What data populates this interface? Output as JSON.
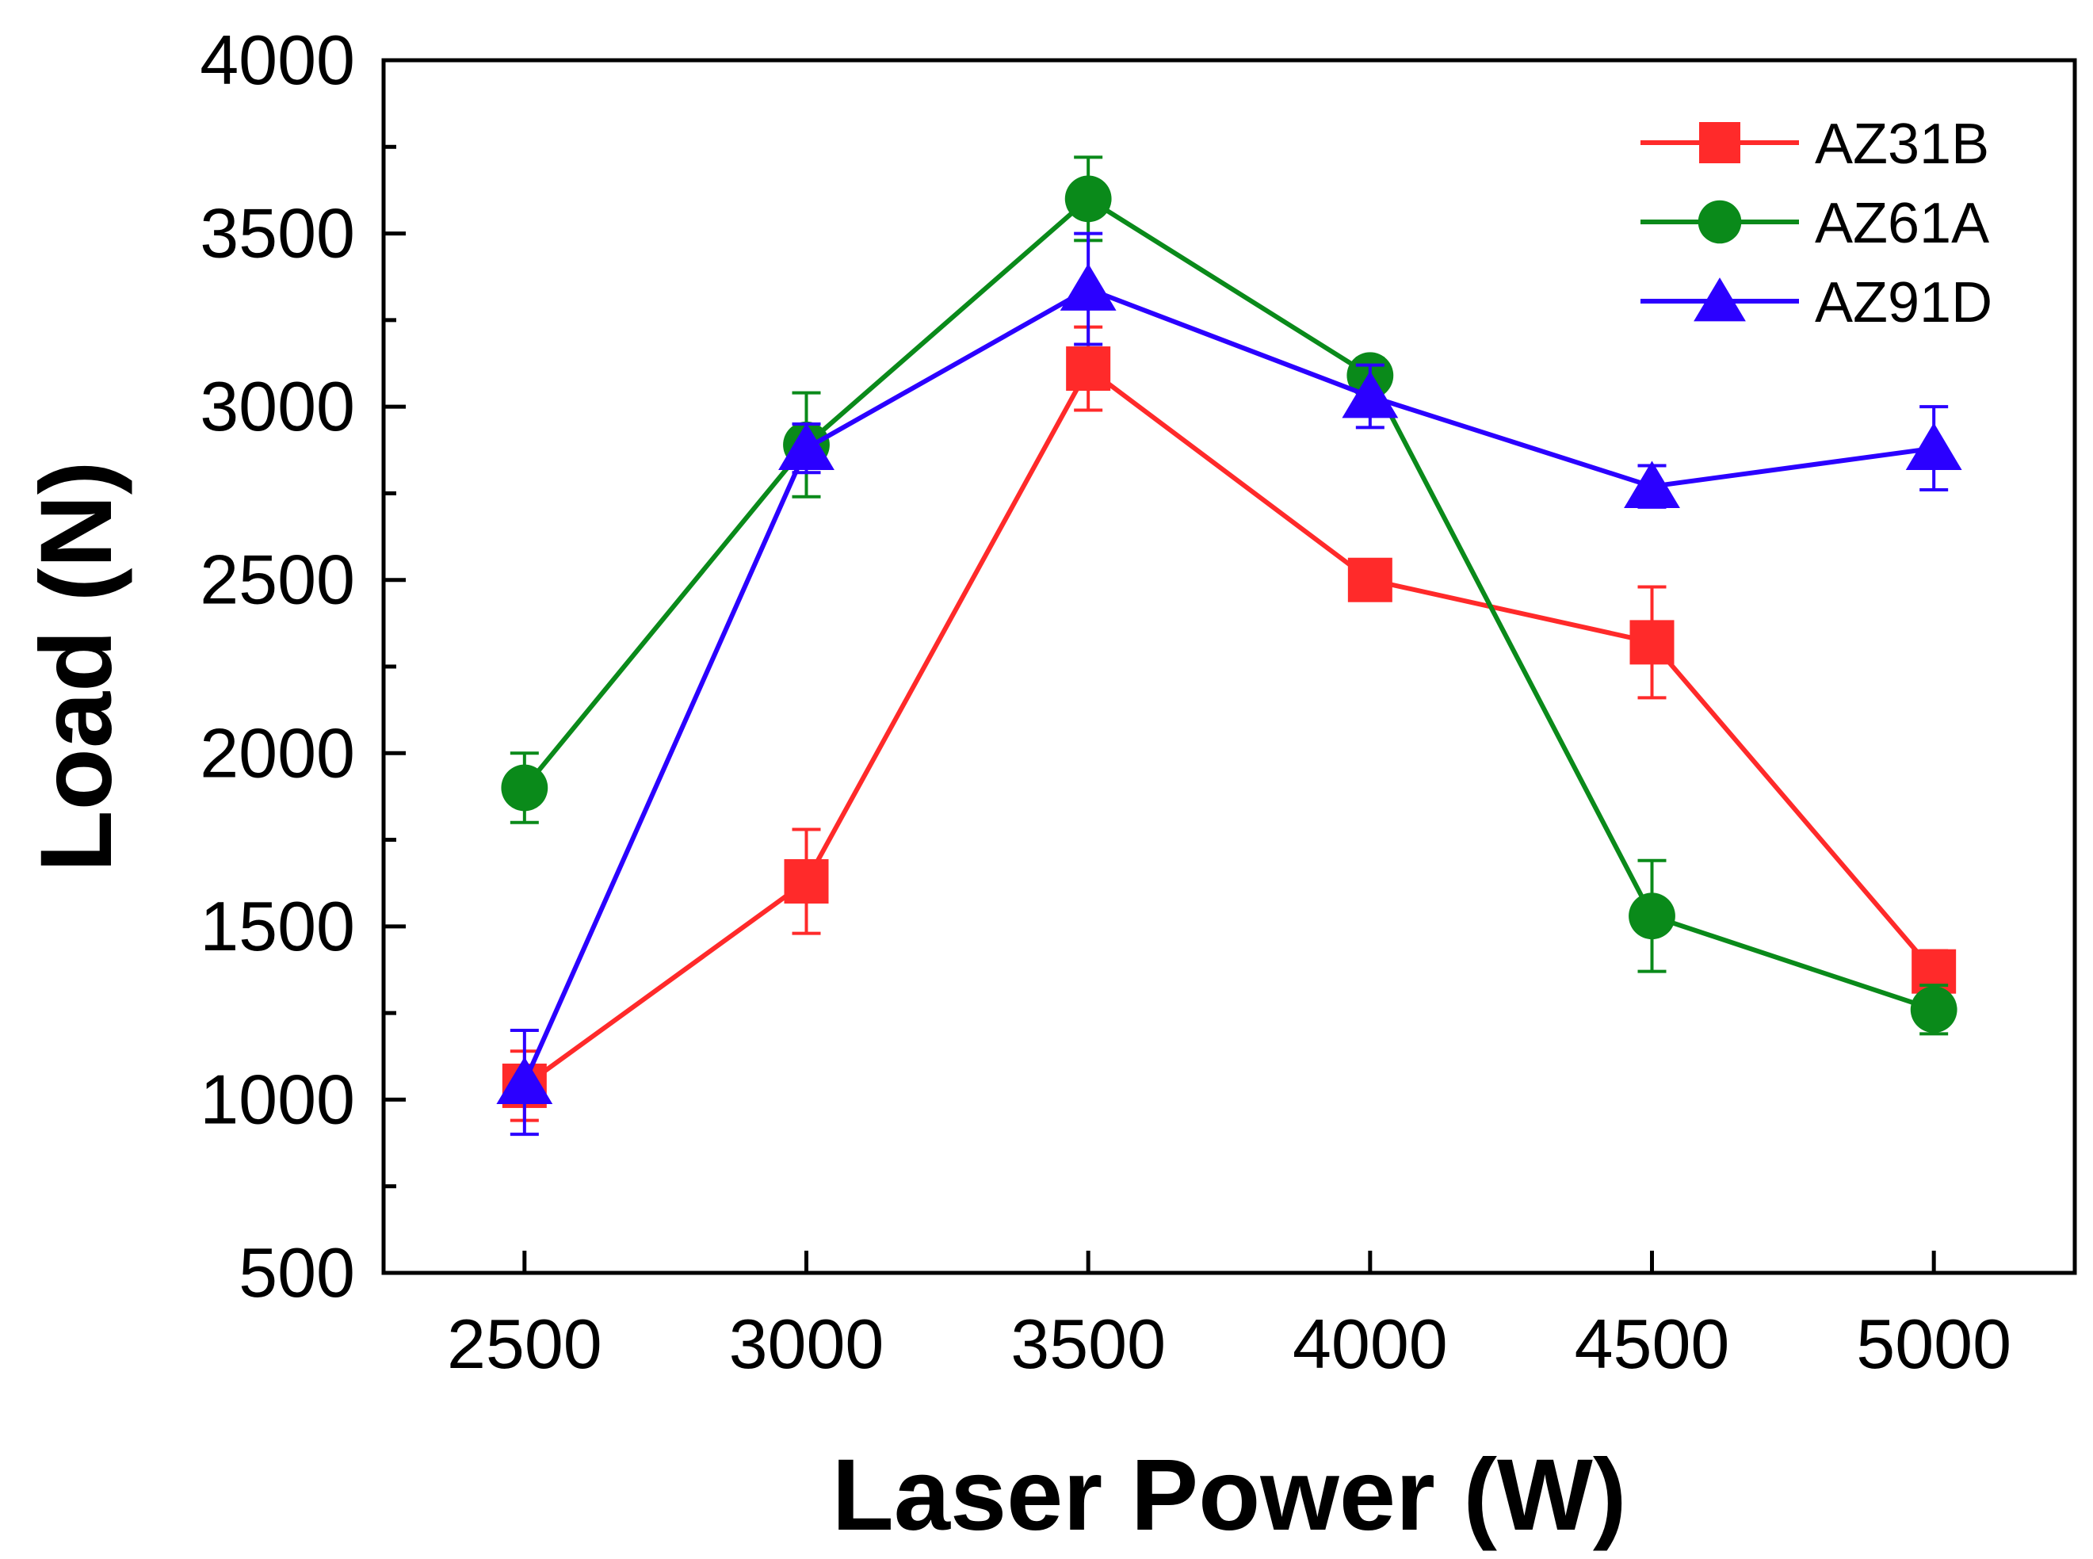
{
  "chart_data": {
    "type": "line",
    "title": "",
    "xlabel": "Laser Power (W)",
    "ylabel": "Load (N)",
    "xlim": [
      2250,
      5250
    ],
    "ylim": [
      500,
      4000
    ],
    "x": [
      2500,
      3000,
      3500,
      4000,
      4500,
      5000
    ],
    "xticks": [
      "2500",
      "3000",
      "3500",
      "4000",
      "4500",
      "5000"
    ],
    "yticks": [
      "500",
      "1000",
      "1500",
      "2000",
      "2500",
      "3000",
      "3500",
      "4000"
    ],
    "legend_position": "top-right",
    "series": [
      {
        "name": "AZ31B",
        "color": "#ff2a2a",
        "marker": "square",
        "values": [
          1040,
          1630,
          3110,
          2500,
          2320,
          1370
        ],
        "errors": [
          100,
          150,
          120,
          40,
          160,
          60
        ]
      },
      {
        "name": "AZ61A",
        "color": "#0a8a1a",
        "marker": "circle",
        "values": [
          1900,
          2890,
          3600,
          3090,
          1530,
          1260
        ],
        "errors": [
          100,
          150,
          120,
          50,
          160,
          70
        ]
      },
      {
        "name": "AZ91D",
        "color": "#2b00ff",
        "marker": "triangle",
        "values": [
          1050,
          2880,
          3340,
          3030,
          2770,
          2880
        ],
        "errors": [
          150,
          70,
          160,
          90,
          60,
          120
        ]
      }
    ]
  }
}
